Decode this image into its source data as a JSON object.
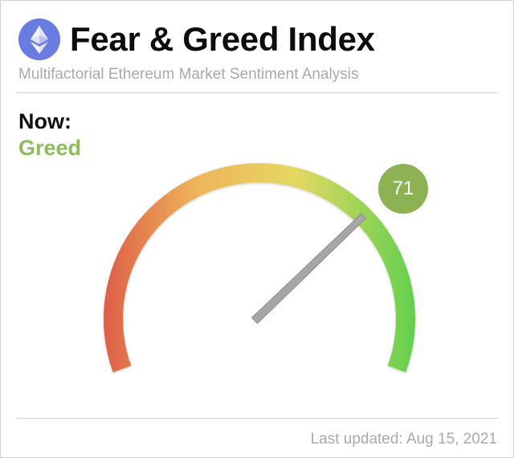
{
  "header": {
    "title": "Fear & Greed Index",
    "subtitle": "Multifactorial Ethereum Market Sentiment Analysis",
    "logo_icon": "ethereum-icon"
  },
  "status": {
    "now_label": "Now:",
    "classification": "Greed",
    "classification_color": "#8cbd5a"
  },
  "gauge": {
    "value": "71",
    "scale_min": 0,
    "scale_max": 100,
    "badge_color": "#8cb254",
    "needle_color": "#a6a6a6",
    "gradient": [
      "#dd5f49",
      "#efb55a",
      "#e3d862",
      "#63d04e"
    ]
  },
  "footer": {
    "last_updated": "Last updated: Aug 15, 2021"
  }
}
